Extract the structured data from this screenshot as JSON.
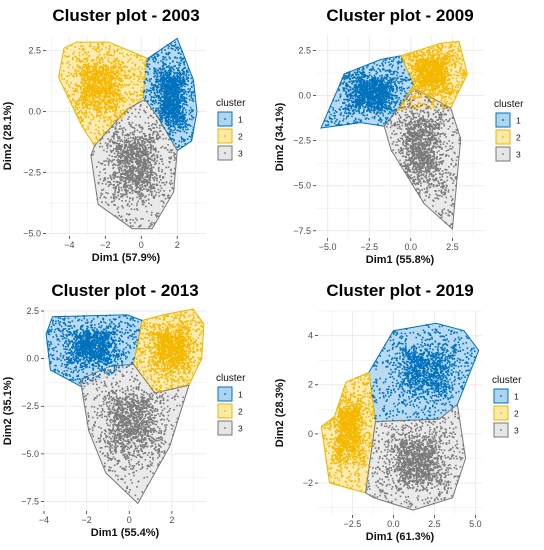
{
  "colors": {
    "c1_fill": "#aed4ee",
    "c1_line": "#0072bd",
    "c1_pt": "#0072bd",
    "c2_fill": "#fbe9a6",
    "c2_line": "#e7b800",
    "c2_pt": "#f5b800",
    "c3_fill": "#e6e6e6",
    "c3_line": "#777777",
    "c3_pt": "#7a7a7a",
    "panel_bg": "#ffffff",
    "grid": "#ebebeb"
  },
  "chart_data": [
    {
      "type": "scatter",
      "title": "Cluster plot - 2003",
      "xlabel": "Dim1 (57.9%)",
      "ylabel": "Dim2 (28.1%)",
      "xlim": [
        -5.3,
        3.6
      ],
      "ylim": [
        -5.1,
        3.1
      ],
      "xticks": [
        -4,
        -2,
        0,
        2
      ],
      "yticks": [
        2.5,
        0.0,
        -2.5,
        -5.0
      ],
      "grid": true,
      "legend": {
        "title": "cluster",
        "position": "right",
        "entries": [
          "1",
          "2",
          "3"
        ]
      },
      "series": [
        {
          "name": "1",
          "hull": [
            [
              0.2,
              2.1
            ],
            [
              2.0,
              3.0
            ],
            [
              2.9,
              1.3
            ],
            [
              3.1,
              0.0
            ],
            [
              2.8,
              -1.2
            ],
            [
              2.0,
              -1.6
            ],
            [
              0.9,
              -0.2
            ],
            [
              0.1,
              0.6
            ]
          ]
        },
        {
          "name": "2",
          "hull": [
            [
              -4.3,
              2.6
            ],
            [
              -3.6,
              2.85
            ],
            [
              -1.8,
              2.85
            ],
            [
              0.3,
              2.2
            ],
            [
              0.1,
              0.6
            ],
            [
              -2.6,
              -1.4
            ],
            [
              -3.3,
              -0.6
            ],
            [
              -4.6,
              1.4
            ]
          ]
        },
        {
          "name": "3",
          "hull": [
            [
              -2.6,
              -1.4
            ],
            [
              -0.8,
              0.1
            ],
            [
              0.2,
              0.5
            ],
            [
              0.9,
              -0.2
            ],
            [
              2.0,
              -1.6
            ],
            [
              1.8,
              -3.3
            ],
            [
              0.6,
              -4.8
            ],
            [
              -0.5,
              -4.8
            ],
            [
              -2.4,
              -3.8
            ],
            [
              -2.8,
              -1.8
            ]
          ]
        }
      ]
    },
    {
      "type": "scatter",
      "title": "Cluster plot - 2009",
      "xlabel": "Dim1 (55.8%)",
      "ylabel": "Dim2 (34.1%)",
      "xlim": [
        -5.7,
        4.4
      ],
      "ylim": [
        -7.9,
        3.3
      ],
      "xticks": [
        -5.0,
        -2.5,
        0.0,
        2.5
      ],
      "yticks": [
        2.5,
        0.0,
        -2.5,
        -5.0,
        -7.5
      ],
      "grid": true,
      "legend": {
        "title": "cluster",
        "position": "right",
        "entries": [
          "1",
          "2",
          "3"
        ]
      },
      "series": [
        {
          "name": "1",
          "hull": [
            [
              -5.4,
              -1.8
            ],
            [
              -3.0,
              -1.5
            ],
            [
              -1.6,
              -1.7
            ],
            [
              -0.8,
              -0.8
            ],
            [
              0.2,
              0.6
            ],
            [
              -0.6,
              2.2
            ],
            [
              -1.8,
              2.0
            ],
            [
              -4.0,
              1.2
            ]
          ]
        },
        {
          "name": "2",
          "hull": [
            [
              0.2,
              0.6
            ],
            [
              -0.6,
              2.2
            ],
            [
              0.1,
              2.4
            ],
            [
              1.8,
              2.9
            ],
            [
              2.9,
              3.0
            ],
            [
              3.4,
              1.2
            ],
            [
              2.4,
              -0.7
            ],
            [
              -0.8,
              -0.8
            ]
          ]
        },
        {
          "name": "3",
          "hull": [
            [
              -1.6,
              -1.7
            ],
            [
              -0.8,
              -0.8
            ],
            [
              0.2,
              0.4
            ],
            [
              2.4,
              -0.7
            ],
            [
              3.0,
              -2.4
            ],
            [
              2.5,
              -7.4
            ],
            [
              0.8,
              -6.0
            ],
            [
              -1.2,
              -3.0
            ]
          ]
        }
      ]
    },
    {
      "type": "scatter",
      "title": "Cluster plot - 2013",
      "xlabel": "Dim1 (55.4%)",
      "ylabel": "Dim2 (35.1%)",
      "xlim": [
        -4.0,
        3.6
      ],
      "ylim": [
        -8.0,
        2.5
      ],
      "xticks": [
        -4,
        -2,
        0,
        2
      ],
      "yticks": [
        2.5,
        0.0,
        -2.5,
        -5.0,
        -7.5
      ],
      "grid": true,
      "legend": {
        "title": "cluster",
        "position": "right",
        "entries": [
          "1",
          "2",
          "3"
        ]
      },
      "series": [
        {
          "name": "1",
          "hull": [
            [
              -3.9,
              1.3
            ],
            [
              -3.6,
              2.2
            ],
            [
              -0.1,
              2.3
            ],
            [
              0.6,
              2.0
            ],
            [
              0.2,
              -0.3
            ],
            [
              -2.2,
              -1.5
            ],
            [
              -3.7,
              -0.6
            ]
          ]
        },
        {
          "name": "2",
          "hull": [
            [
              0.6,
              2.0
            ],
            [
              1.6,
              2.3
            ],
            [
              3.0,
              2.6
            ],
            [
              3.5,
              1.8
            ],
            [
              3.4,
              0.0
            ],
            [
              2.8,
              -1.4
            ],
            [
              1.2,
              -1.8
            ],
            [
              0.2,
              -0.3
            ]
          ]
        },
        {
          "name": "3",
          "hull": [
            [
              -2.3,
              -1.1
            ],
            [
              -0.9,
              -0.4
            ],
            [
              0.2,
              -0.3
            ],
            [
              1.2,
              -1.8
            ],
            [
              2.8,
              -1.4
            ],
            [
              1.9,
              -4.6
            ],
            [
              0.4,
              -7.6
            ],
            [
              -1.1,
              -6.0
            ],
            [
              -1.9,
              -3.8
            ]
          ]
        }
      ]
    },
    {
      "type": "scatter",
      "title": "Cluster plot - 2019",
      "xlabel": "Dim1 (61.3%)",
      "ylabel": "Dim2 (28.3%)",
      "xlim": [
        -4.6,
        5.4
      ],
      "ylim": [
        -3.3,
        5.0
      ],
      "xticks": [
        -2.5,
        0.0,
        2.5,
        5.0
      ],
      "yticks": [
        4,
        2,
        0,
        -2
      ],
      "grid": true,
      "legend": {
        "title": "cluster",
        "position": "right",
        "entries": [
          "1",
          "2",
          "3"
        ]
      },
      "series": [
        {
          "name": "1",
          "hull": [
            [
              -1.5,
              2.5
            ],
            [
              0.0,
              4.2
            ],
            [
              2.6,
              4.5
            ],
            [
              4.3,
              4.2
            ],
            [
              5.2,
              3.4
            ],
            [
              3.9,
              1.2
            ],
            [
              2.8,
              0.6
            ],
            [
              -1.1,
              0.5
            ]
          ]
        },
        {
          "name": "2",
          "hull": [
            [
              -1.5,
              2.5
            ],
            [
              -1.1,
              0.5
            ],
            [
              -1.7,
              -2.4
            ],
            [
              -3.9,
              -2.0
            ],
            [
              -4.4,
              0.3
            ],
            [
              -3.6,
              0.7
            ],
            [
              -2.9,
              2.1
            ]
          ]
        },
        {
          "name": "3",
          "hull": [
            [
              -1.1,
              0.5
            ],
            [
              2.8,
              0.6
            ],
            [
              3.9,
              1.2
            ],
            [
              4.4,
              -1.0
            ],
            [
              3.6,
              -2.6
            ],
            [
              1.2,
              -3.1
            ],
            [
              -1.2,
              -2.6
            ],
            [
              -1.7,
              -2.4
            ]
          ]
        }
      ]
    }
  ]
}
